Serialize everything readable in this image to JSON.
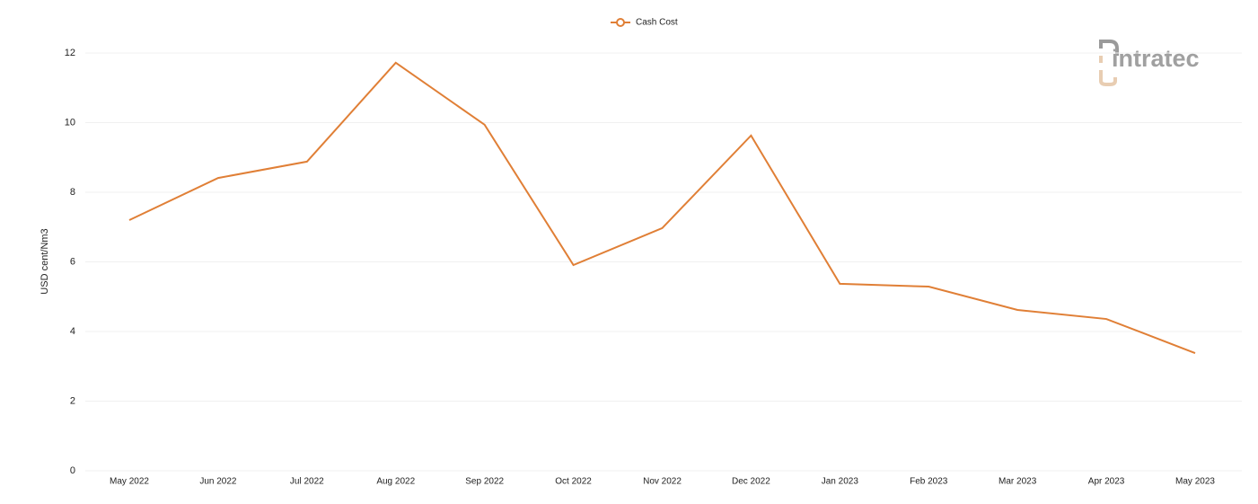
{
  "chart_data": {
    "type": "line",
    "watermark": "intratec",
    "y_label": "USD cent/Nm3",
    "categories": [
      "May 2022",
      "Jun 2022",
      "Jul 2022",
      "Aug 2022",
      "Sep 2022",
      "Oct 2022",
      "Nov 2022",
      "Dec 2022",
      "Jan 2023",
      "Feb 2023",
      "Mar 2023",
      "Apr 2023",
      "May 2023"
    ],
    "series": [
      {
        "name": "Cash Cost",
        "color": "#e07f36",
        "values": [
          7.2,
          8.41,
          8.88,
          11.72,
          9.94,
          5.91,
          6.97,
          9.63,
          5.37,
          5.29,
          4.62,
          4.36,
          3.38
        ]
      }
    ],
    "ylim": [
      0,
      12
    ],
    "yticks": [
      0,
      2,
      4,
      6,
      8,
      10,
      12
    ],
    "grid": true,
    "legend": "top"
  }
}
